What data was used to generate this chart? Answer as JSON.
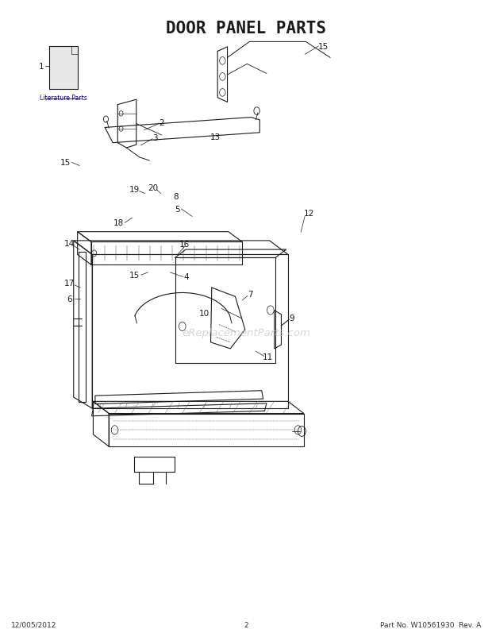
{
  "title": "DOOR PANEL PARTS",
  "title_fontsize": 15,
  "title_fontweight": "bold",
  "bg_color": "#ffffff",
  "line_color": "#1a1a1a",
  "footer_left": "12/005/2012",
  "footer_center": "2",
  "footer_right": "Part No. W10561930  Rev. A",
  "watermark": "eReplacementParts.com",
  "link_text": "Literature Parts"
}
